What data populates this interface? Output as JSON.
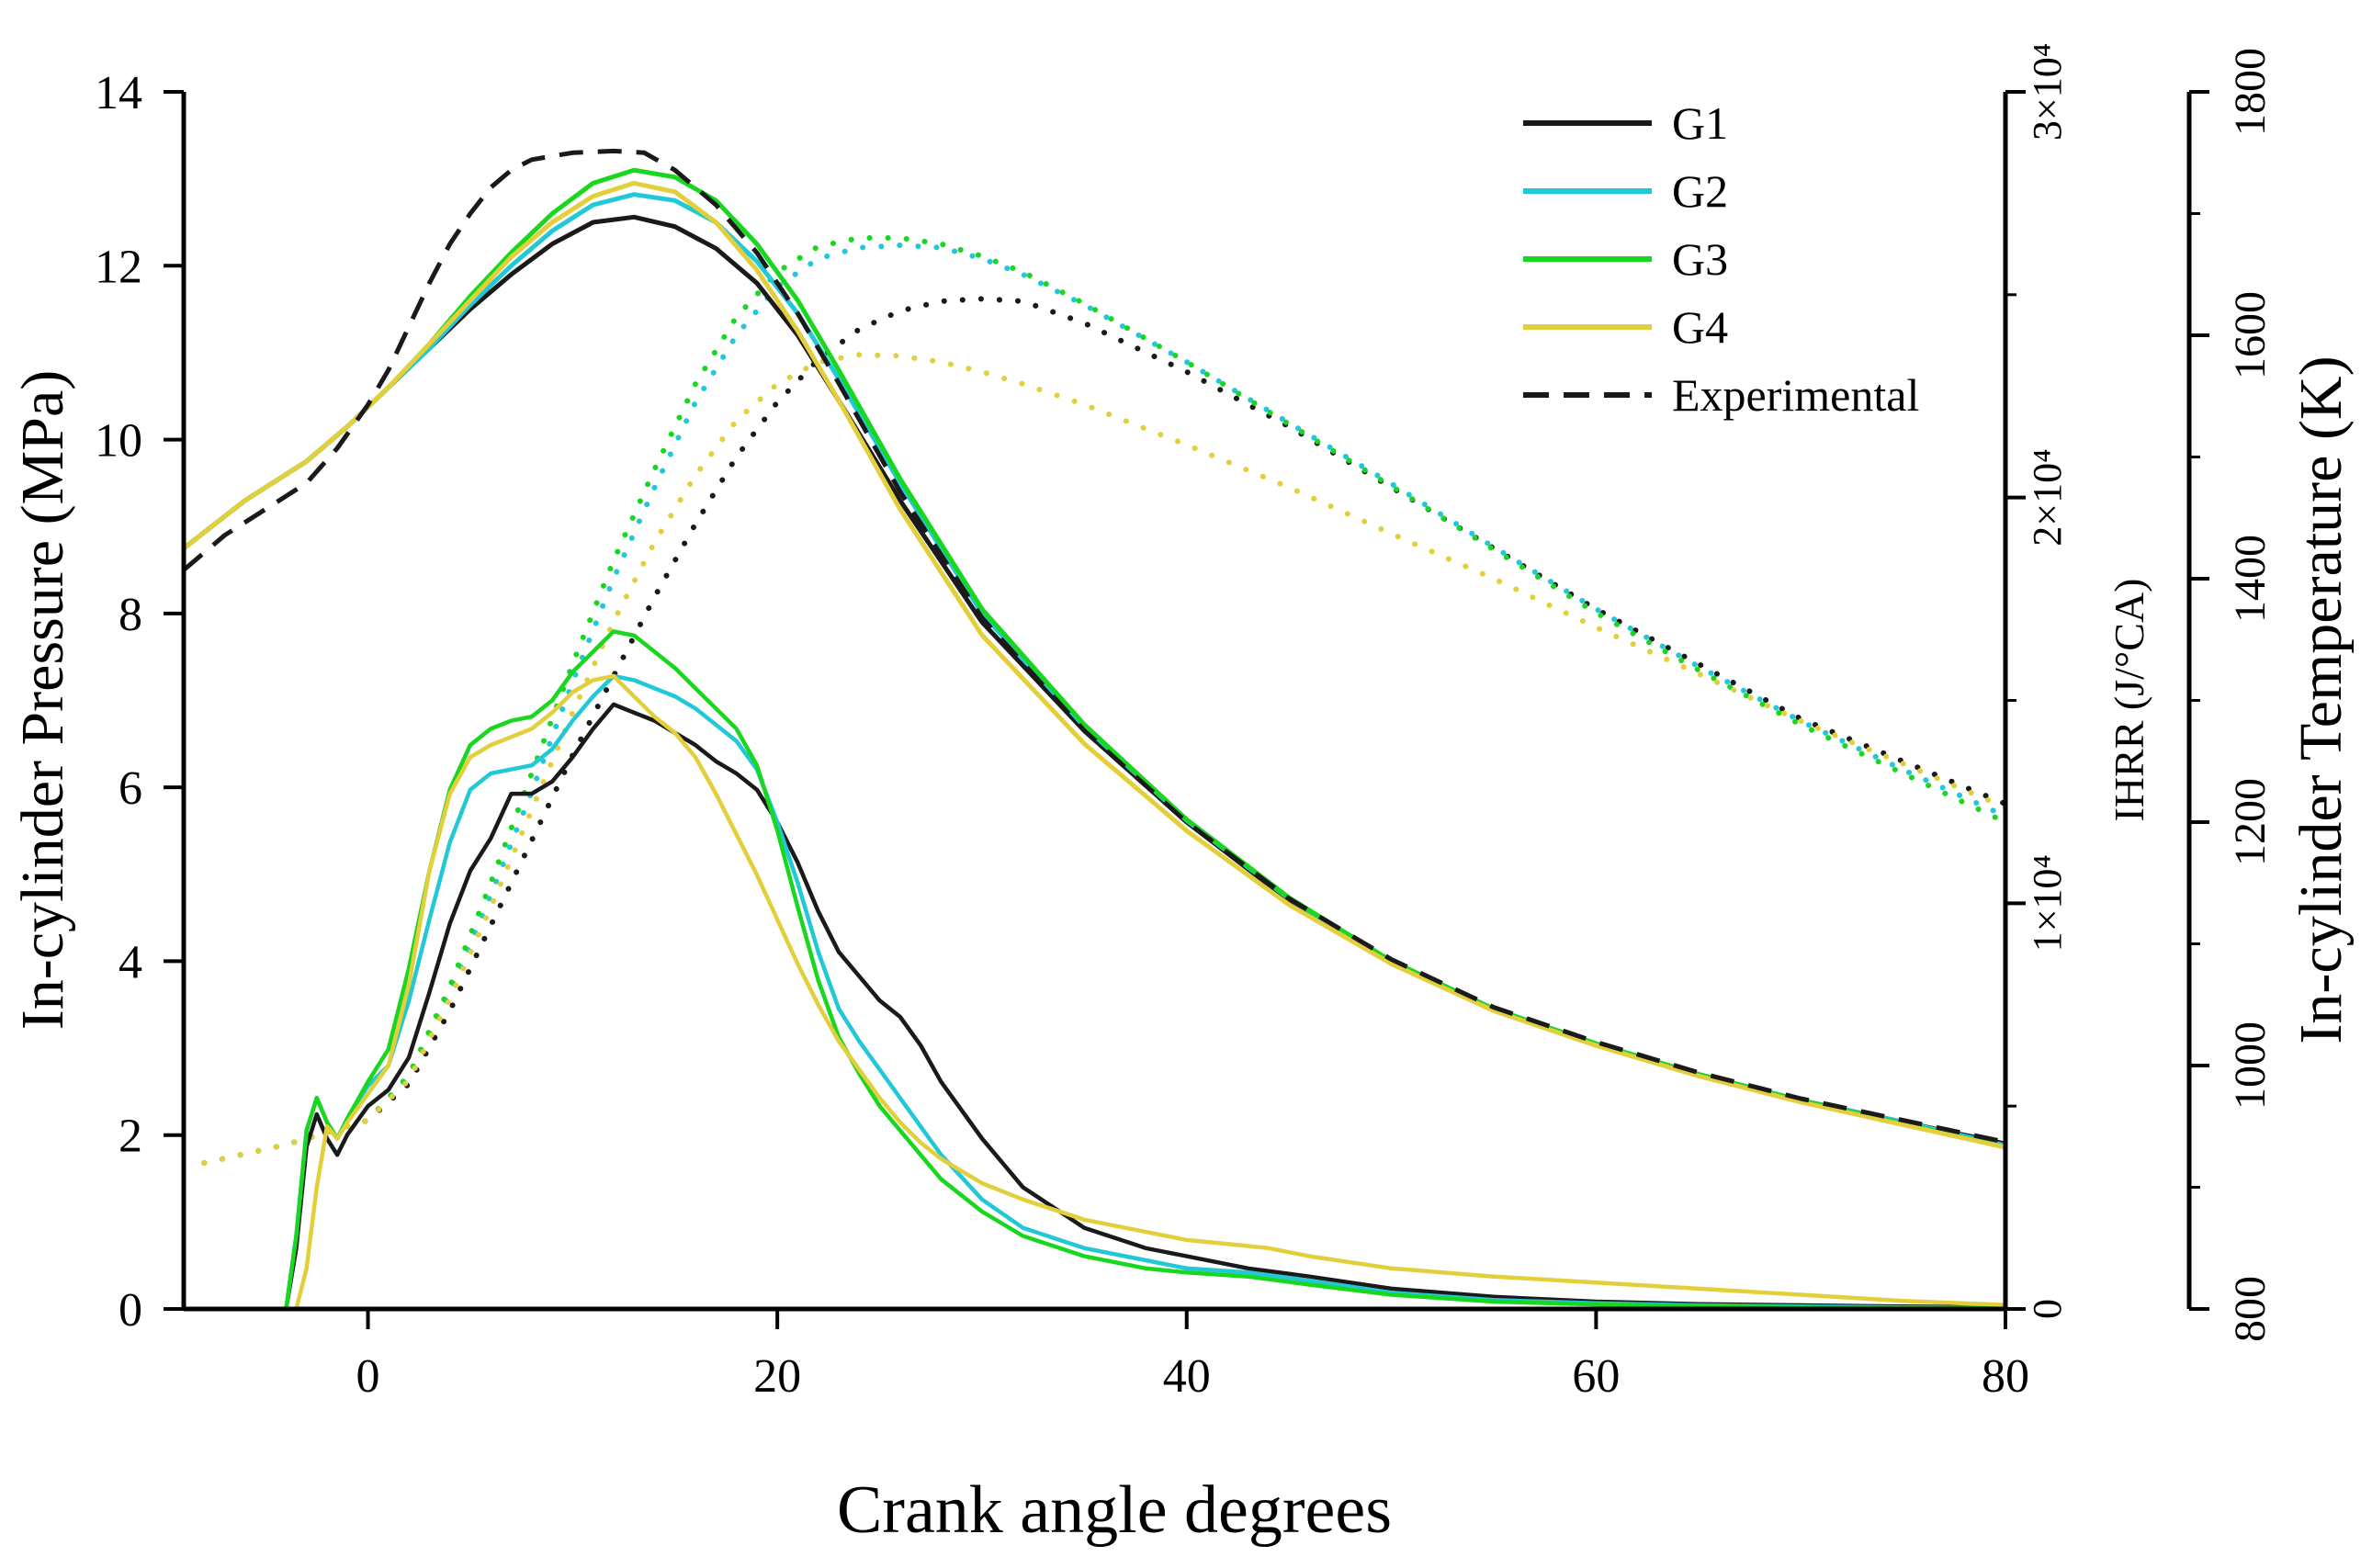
{
  "chart_data": {
    "type": "line",
    "title": "",
    "xlabel": "Crank angle degrees",
    "ylabel_left": "In-cylinder Pressure (MPa)",
    "ylabel_ihrr": "IHRR (J/°CA)",
    "ylabel_temp": "In-cylinder Temperature (K)",
    "xlim": [
      -9,
      80
    ],
    "ylim_pressure": [
      0,
      14
    ],
    "ylim_ihrr": [
      0,
      30000
    ],
    "ylim_temp": [
      800,
      1800
    ],
    "x_ticks": [
      "0",
      "20",
      "40",
      "60",
      "80"
    ],
    "x_tick_values": [
      0,
      20,
      40,
      60,
      80
    ],
    "pressure_ticks": [
      "0",
      "2",
      "4",
      "6",
      "8",
      "10",
      "12",
      "14"
    ],
    "pressure_tick_values": [
      0,
      2,
      4,
      6,
      8,
      10,
      12,
      14
    ],
    "ihrr_ticks": [
      "0",
      "1×10⁴",
      "2×10⁴",
      "3×10⁴"
    ],
    "ihrr_tick_values": [
      0,
      10000,
      20000,
      30000
    ],
    "temp_ticks": [
      "800",
      "1000",
      "1200",
      "1400",
      "1600",
      "1800"
    ],
    "temp_tick_values": [
      800,
      1000,
      1200,
      1400,
      1600,
      1800
    ],
    "legend_position": "top-right",
    "legend": [
      "G1",
      "G2",
      "G3",
      "G4",
      "Experimental"
    ],
    "colors": {
      "G1": "#1a1a1a",
      "G2": "#22c8d8",
      "G3": "#19d61f",
      "G4": "#e3cf3c",
      "Experimental": "#1a1a1a"
    },
    "series": [
      {
        "name": "G1",
        "kind": "pressure",
        "axis": "pressure",
        "style": "solid",
        "x": [
          -9,
          -6,
          -3,
          -1,
          1,
          3,
          5,
          7,
          9,
          11,
          13,
          15,
          17,
          19,
          21,
          23,
          26,
          30,
          35,
          40,
          45,
          50,
          55,
          60,
          65,
          70,
          75,
          80
        ],
        "values": [
          8.75,
          9.3,
          9.75,
          10.15,
          10.6,
          11.05,
          11.5,
          11.9,
          12.25,
          12.5,
          12.56,
          12.45,
          12.2,
          11.8,
          11.2,
          10.45,
          9.3,
          7.9,
          6.65,
          5.6,
          4.7,
          4.0,
          3.45,
          3.05,
          2.7,
          2.4,
          2.15,
          1.9
        ]
      },
      {
        "name": "G2",
        "kind": "pressure",
        "axis": "pressure",
        "style": "solid",
        "x": [
          -9,
          -6,
          -3,
          -1,
          1,
          3,
          5,
          7,
          9,
          11,
          13,
          15,
          17,
          19,
          21,
          23,
          26,
          30,
          35,
          40,
          45,
          50,
          55,
          60,
          65,
          70,
          75,
          80
        ],
        "values": [
          8.75,
          9.3,
          9.75,
          10.15,
          10.6,
          11.05,
          11.55,
          12.0,
          12.4,
          12.7,
          12.82,
          12.75,
          12.5,
          12.05,
          11.45,
          10.7,
          9.5,
          8.0,
          6.7,
          5.62,
          4.72,
          4.0,
          3.45,
          3.05,
          2.7,
          2.4,
          2.15,
          1.88
        ]
      },
      {
        "name": "G3",
        "kind": "pressure",
        "axis": "pressure",
        "style": "solid",
        "x": [
          -9,
          -6,
          -3,
          -1,
          1,
          3,
          5,
          7,
          9,
          11,
          13,
          15,
          17,
          19,
          21,
          23,
          26,
          30,
          35,
          40,
          45,
          50,
          55,
          60,
          65,
          70,
          75,
          80
        ],
        "values": [
          8.75,
          9.3,
          9.75,
          10.15,
          10.6,
          11.1,
          11.65,
          12.15,
          12.6,
          12.95,
          13.1,
          13.02,
          12.75,
          12.25,
          11.6,
          10.8,
          9.55,
          8.05,
          6.72,
          5.63,
          4.73,
          4.0,
          3.45,
          3.05,
          2.7,
          2.4,
          2.13,
          1.86
        ]
      },
      {
        "name": "G4",
        "kind": "pressure",
        "axis": "pressure",
        "style": "solid",
        "x": [
          -9,
          -6,
          -3,
          -1,
          1,
          3,
          5,
          7,
          9,
          11,
          13,
          15,
          17,
          19,
          21,
          23,
          26,
          30,
          35,
          40,
          45,
          50,
          55,
          60,
          65,
          70,
          75,
          80
        ],
        "values": [
          8.75,
          9.3,
          9.75,
          10.15,
          10.6,
          11.1,
          11.6,
          12.1,
          12.5,
          12.8,
          12.95,
          12.85,
          12.5,
          11.95,
          11.25,
          10.45,
          9.2,
          7.75,
          6.5,
          5.5,
          4.65,
          3.97,
          3.43,
          3.03,
          2.68,
          2.38,
          2.12,
          1.86
        ]
      },
      {
        "name": "Experimental",
        "kind": "pressure",
        "axis": "pressure",
        "style": "dashed",
        "x": [
          -9,
          -7,
          -5,
          -3,
          -1.5,
          0,
          1,
          2,
          3,
          4,
          5,
          6,
          7,
          8,
          10,
          12,
          13.5,
          15,
          17,
          19,
          21,
          23,
          26,
          30,
          35,
          40,
          45,
          50,
          55,
          60,
          65,
          70,
          75,
          80
        ],
        "values": [
          8.5,
          8.9,
          9.2,
          9.5,
          9.9,
          10.4,
          10.8,
          11.3,
          11.8,
          12.25,
          12.6,
          12.9,
          13.1,
          13.22,
          13.3,
          13.32,
          13.3,
          13.1,
          12.7,
          12.15,
          11.45,
          10.65,
          9.4,
          7.95,
          6.65,
          5.6,
          4.72,
          4.02,
          3.47,
          3.07,
          2.72,
          2.42,
          2.17,
          1.92
        ]
      },
      {
        "name": "G1",
        "kind": "temperature",
        "axis": "temp",
        "style": "dotted",
        "x": [
          -8,
          -4,
          0,
          2,
          4,
          6,
          8,
          10,
          12,
          14,
          16,
          18,
          20,
          22,
          24,
          26,
          28,
          30,
          32,
          35,
          40,
          45,
          50,
          55,
          60,
          65,
          70,
          75,
          80
        ],
        "values": [
          920,
          935,
          955,
          985,
          1045,
          1115,
          1185,
          1255,
          1320,
          1385,
          1445,
          1500,
          1545,
          1580,
          1605,
          1620,
          1628,
          1630,
          1628,
          1610,
          1570,
          1525,
          1475,
          1425,
          1375,
          1330,
          1285,
          1250,
          1215
        ]
      },
      {
        "name": "G2",
        "kind": "temperature",
        "axis": "temp",
        "style": "dotted",
        "x": [
          -8,
          -4,
          0,
          2,
          4,
          6,
          8,
          10,
          12,
          14,
          16,
          18,
          20,
          22,
          24,
          26,
          28,
          30,
          32,
          35,
          40,
          45,
          50,
          55,
          60,
          65,
          70,
          75,
          80
        ],
        "values": [
          920,
          935,
          955,
          990,
          1060,
          1140,
          1225,
          1315,
          1400,
          1475,
          1545,
          1600,
          1640,
          1663,
          1672,
          1674,
          1672,
          1663,
          1650,
          1625,
          1578,
          1528,
          1478,
          1426,
          1375,
          1328,
          1283,
          1243,
          1205
        ]
      },
      {
        "name": "G3",
        "kind": "temperature",
        "axis": "temp",
        "style": "dotted",
        "x": [
          -8,
          -4,
          0,
          2,
          4,
          6,
          8,
          10,
          12,
          14,
          16,
          18,
          20,
          22,
          24,
          26,
          28,
          30,
          32,
          35,
          40,
          45,
          50,
          55,
          60,
          65,
          70,
          75,
          80
        ],
        "values": [
          920,
          935,
          955,
          992,
          1065,
          1150,
          1240,
          1330,
          1415,
          1490,
          1560,
          1615,
          1652,
          1673,
          1680,
          1680,
          1675,
          1665,
          1652,
          1626,
          1578,
          1527,
          1476,
          1424,
          1372,
          1325,
          1280,
          1240,
          1200
        ]
      },
      {
        "name": "G4",
        "kind": "temperature",
        "axis": "temp",
        "style": "dotted",
        "x": [
          -8,
          -4,
          0,
          2,
          4,
          6,
          8,
          10,
          12,
          14,
          16,
          18,
          20,
          22,
          24,
          26,
          28,
          30,
          32,
          35,
          40,
          45,
          50,
          55,
          60,
          65,
          70,
          75,
          80
        ],
        "values": [
          920,
          935,
          955,
          988,
          1055,
          1130,
          1210,
          1290,
          1365,
          1430,
          1485,
          1530,
          1560,
          1578,
          1584,
          1583,
          1578,
          1570,
          1560,
          1543,
          1510,
          1475,
          1437,
          1400,
          1360,
          1322,
          1283,
          1248,
          1212
        ]
      },
      {
        "name": "G1",
        "kind": "ihrr",
        "axis": "ihrr",
        "style": "solid",
        "x": [
          -4,
          -3.5,
          -3,
          -2.5,
          -2,
          -1.5,
          -1,
          0,
          1,
          2,
          3,
          4,
          5,
          6,
          7,
          8,
          9,
          10,
          11,
          12,
          13,
          14,
          15,
          16,
          17,
          18,
          19,
          20,
          21,
          22,
          23,
          24,
          25,
          26,
          27,
          28,
          30,
          32,
          35,
          38,
          40,
          43,
          46,
          50,
          55,
          60,
          65,
          70,
          75,
          80
        ],
        "values": [
          0,
          1500,
          4000,
          4800,
          4200,
          3800,
          4300,
          5000,
          5400,
          6200,
          7800,
          9500,
          10800,
          11600,
          12700,
          12700,
          13000,
          13600,
          14300,
          14900,
          14700,
          14500,
          14200,
          13900,
          13500,
          13200,
          12800,
          12000,
          11000,
          9800,
          8800,
          8200,
          7600,
          7200,
          6500,
          5600,
          4200,
          3000,
          2000,
          1500,
          1300,
          1000,
          800,
          500,
          300,
          180,
          120,
          90,
          60,
          40
        ]
      },
      {
        "name": "G2",
        "kind": "ihrr",
        "axis": "ihrr",
        "style": "solid",
        "x": [
          -4,
          -3.5,
          -3,
          -2.5,
          -2,
          -1.5,
          -1,
          0,
          1,
          2,
          3,
          4,
          5,
          6,
          7,
          8,
          9,
          10,
          11,
          12,
          13,
          14,
          15,
          16,
          17,
          18,
          19,
          20,
          21,
          22,
          23,
          24,
          25,
          26,
          27,
          28,
          30,
          32,
          35,
          38,
          40,
          43,
          46,
          50,
          55,
          60,
          65,
          70,
          75,
          80
        ],
        "values": [
          0,
          1800,
          4400,
          5200,
          4600,
          4200,
          4700,
          5500,
          6000,
          7600,
          9600,
          11500,
          12800,
          13200,
          13300,
          13400,
          13800,
          14500,
          15100,
          15600,
          15500,
          15300,
          15100,
          14800,
          14400,
          14000,
          13300,
          12000,
          10500,
          8800,
          7400,
          6600,
          5900,
          5200,
          4500,
          3800,
          2700,
          2000,
          1500,
          1200,
          1000,
          900,
          700,
          400,
          220,
          140,
          90,
          60,
          40,
          25
        ]
      },
      {
        "name": "G3",
        "kind": "ihrr",
        "axis": "ihrr",
        "style": "solid",
        "x": [
          -4,
          -3.5,
          -3,
          -2.5,
          -2,
          -1.5,
          -1,
          0,
          1,
          2,
          3,
          4,
          5,
          6,
          7,
          8,
          9,
          10,
          11,
          12,
          13,
          14,
          15,
          16,
          17,
          18,
          19,
          20,
          21,
          22,
          23,
          24,
          25,
          26,
          27,
          28,
          30,
          32,
          35,
          38,
          40,
          43,
          46,
          50,
          55,
          60,
          65,
          70,
          75,
          80
        ],
        "values": [
          0,
          1800,
          4400,
          5200,
          4600,
          4200,
          4700,
          5600,
          6400,
          8400,
          10800,
          12800,
          13900,
          14300,
          14500,
          14600,
          15000,
          15700,
          16200,
          16700,
          16600,
          16200,
          15800,
          15300,
          14800,
          14300,
          13400,
          11800,
          9900,
          8100,
          6700,
          5800,
          5000,
          4400,
          3800,
          3200,
          2400,
          1800,
          1300,
          1000,
          900,
          800,
          600,
          350,
          180,
          110,
          70,
          45,
          30,
          20
        ]
      },
      {
        "name": "G4",
        "kind": "ihrr",
        "axis": "ihrr",
        "style": "solid",
        "x": [
          -3.5,
          -3,
          -2.5,
          -2,
          -1.5,
          -1,
          0,
          1,
          2,
          3,
          4,
          5,
          6,
          7,
          8,
          9,
          10,
          11,
          12,
          13,
          14,
          15,
          16,
          17,
          18,
          19,
          20,
          21,
          22,
          23,
          24,
          25,
          26,
          27,
          28,
          30,
          32,
          35,
          38,
          40,
          42,
          44,
          46,
          50,
          55,
          60,
          65,
          70,
          75,
          80
        ],
        "values": [
          0,
          1000,
          3000,
          4500,
          4200,
          4600,
          5300,
          6000,
          8000,
          10800,
          12700,
          13600,
          13900,
          14100,
          14300,
          14700,
          15200,
          15500,
          15600,
          15100,
          14600,
          14200,
          13600,
          12700,
          11700,
          10700,
          9600,
          8500,
          7500,
          6600,
          5900,
          5200,
          4600,
          4100,
          3700,
          3100,
          2700,
          2200,
          1900,
          1700,
          1600,
          1500,
          1300,
          1000,
          800,
          650,
          500,
          350,
          200,
          100
        ]
      }
    ]
  }
}
